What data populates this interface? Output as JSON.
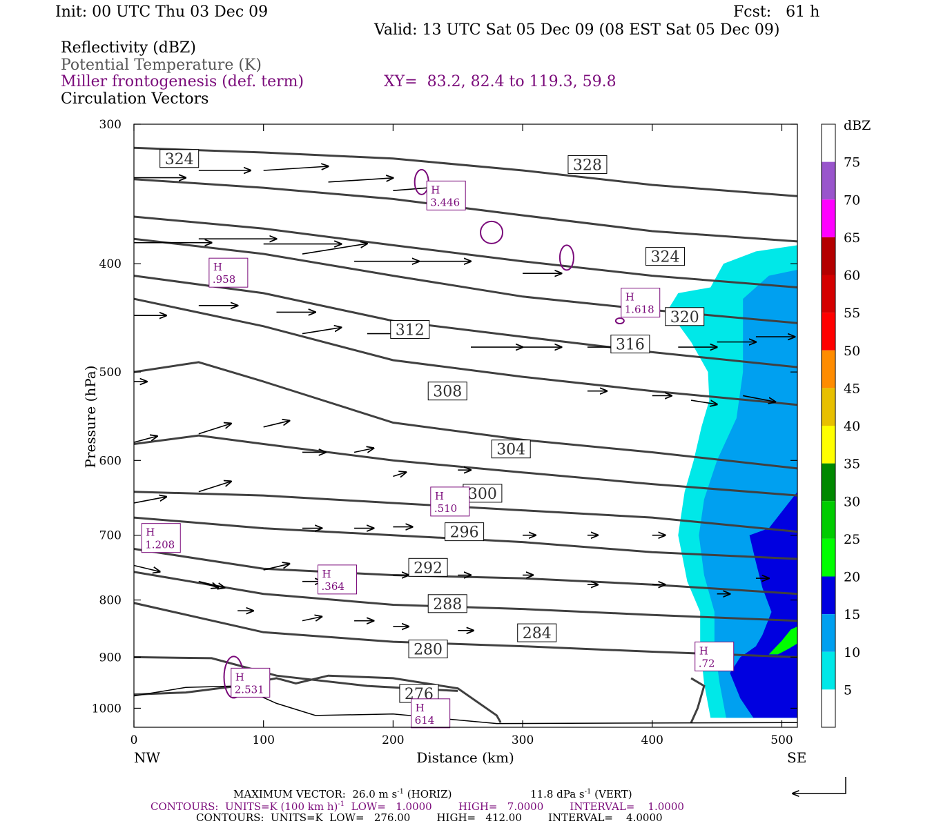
{
  "header": {
    "init": "Init: 00 UTC Thu 03 Dec 09",
    "fcst": "Fcst:   61 h",
    "valid": "Valid: 13 UTC Sat 05 Dec 09 (08 EST Sat 05 Dec 09)",
    "field1": "Reflectivity (dBZ)",
    "field2": "Potential Temperature (K)",
    "field3": "Miller frontogenesis (def. term)",
    "xy": "XY=  83.2, 82.4 to 119.3, 59.8",
    "field4": "Circulation Vectors"
  },
  "colors": {
    "theta": "#404040",
    "fronto": "#7a0a7a",
    "vector": "#000000",
    "dbz": [
      "#ffffff",
      "#00e8e8",
      "#00a0f0",
      "#0000e0",
      "#00ff00",
      "#00cc00",
      "#008800",
      "#ffff00",
      "#e8c000",
      "#ff8c00",
      "#ff0000",
      "#d40000",
      "#b40000",
      "#ff00ff",
      "#9955cc",
      "#ffffff"
    ]
  },
  "chart_data": {
    "type": "cross-section",
    "xlabel": "Distance (km)",
    "ylabel": "Pressure (hPa)",
    "xlim": [
      0,
      512
    ],
    "ylim": [
      300,
      1040
    ],
    "y_log": true,
    "xticks": [
      "0",
      "100",
      "200",
      "300",
      "400",
      "500"
    ],
    "yticks": [
      "300",
      "400",
      "500",
      "600",
      "700",
      "800",
      "900",
      "1000"
    ],
    "left_end": "NW",
    "right_end": "SE",
    "colorbar": {
      "title": "dBZ",
      "levels": [
        "5",
        "10",
        "15",
        "20",
        "25",
        "30",
        "35",
        "40",
        "45",
        "50",
        "55",
        "60",
        "65",
        "70",
        "75"
      ]
    },
    "theta_labels": [
      {
        "v": "324",
        "x": 35,
        "p": 322
      },
      {
        "v": "328",
        "x": 350,
        "p": 326
      },
      {
        "v": "324",
        "x": 410,
        "p": 394
      },
      {
        "v": "320",
        "x": 425,
        "p": 446
      },
      {
        "v": "316",
        "x": 383,
        "p": 472
      },
      {
        "v": "312",
        "x": 213,
        "p": 458
      },
      {
        "v": "308",
        "x": 242,
        "p": 520
      },
      {
        "v": "304",
        "x": 291,
        "p": 586
      },
      {
        "v": "300",
        "x": 269,
        "p": 642
      },
      {
        "v": "296",
        "x": 255,
        "p": 695
      },
      {
        "v": "292",
        "x": 227,
        "p": 748
      },
      {
        "v": "288",
        "x": 242,
        "p": 806
      },
      {
        "v": "284",
        "x": 311,
        "p": 856
      },
      {
        "v": "280",
        "x": 227,
        "p": 885
      },
      {
        "v": "276",
        "x": 220,
        "p": 970
      }
    ],
    "fronto_maxima": [
      {
        "label": "H",
        "value": "3.446",
        "x": 226,
        "p": 348
      },
      {
        "label": "H",
        "value": ".958",
        "x": 58,
        "p": 408
      },
      {
        "label": "H",
        "value": "1.618",
        "x": 376,
        "p": 434
      },
      {
        "label": "H",
        "value": ".510",
        "x": 229,
        "p": 654
      },
      {
        "label": "H",
        "value": "1.208",
        "x": 6,
        "p": 705
      },
      {
        "label": "H",
        "value": ".364",
        "x": 142,
        "p": 768
      },
      {
        "label": "H",
        "value": ".72",
        "x": 433,
        "p": 900
      },
      {
        "label": "H",
        "value": "2.531",
        "x": 75,
        "p": 950
      },
      {
        "label": "H",
        "value": "614",
        "x": 214,
        "p": 1012
      }
    ],
    "footer": {
      "max_vector": "MAXIMUM VECTOR:  26.0 m s",
      "max_vector_unit": "(HORIZ)",
      "vert": "11.8 dPa s",
      "vert_unit": "(VERT)",
      "contours1": "CONTOURS:  UNITS=K (100 km h)",
      "contours1b": "  LOW=   1.0000        HIGH=   7.0000        INTERVAL=    1.0000",
      "contours2": "CONTOURS:  UNITS=K  LOW=   276.00        HIGH=   412.00        INTERVAL=    4.0000"
    }
  }
}
